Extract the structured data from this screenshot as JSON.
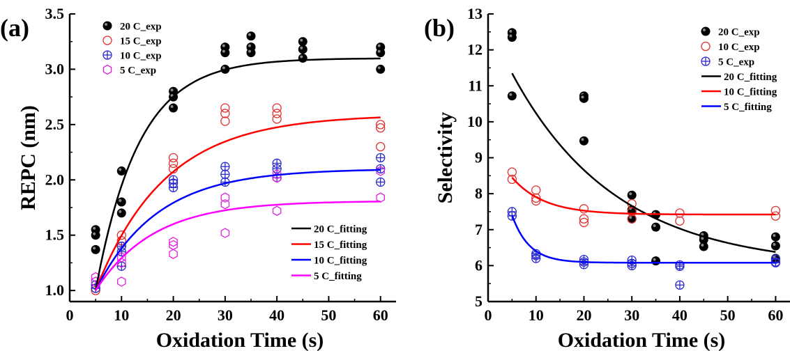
{
  "chart_data": [
    {
      "panel_label": "(a)",
      "type": "scatter",
      "xlabel": "Oxidation Time (s)",
      "ylabel": "REPC (nm)",
      "xlim": [
        0,
        63
      ],
      "ylim": [
        0.9,
        3.5
      ],
      "xticks": [
        "0",
        "10",
        "20",
        "30",
        "40",
        "50",
        "60"
      ],
      "yticks": [
        "1.0",
        "1.5",
        "2.0",
        "2.5",
        "3.0",
        "3.5"
      ],
      "grid": false,
      "series": [
        {
          "name": "20 C_exp",
          "marker": "filled-circle",
          "color": "#000000",
          "x": [
            5,
            5,
            5,
            10,
            10,
            10,
            20,
            20,
            20,
            30,
            30,
            30,
            35,
            35,
            35,
            45,
            45,
            45,
            60,
            60,
            60
          ],
          "y": [
            1.55,
            1.5,
            1.37,
            2.08,
            1.8,
            1.7,
            2.8,
            2.75,
            2.65,
            3.2,
            3.15,
            3.0,
            3.3,
            3.2,
            3.15,
            3.25,
            3.18,
            3.1,
            3.2,
            3.15,
            3.0
          ]
        },
        {
          "name": "15 C_exp",
          "marker": "open-circle",
          "color": "#e03030",
          "x": [
            5,
            5,
            10,
            10,
            10,
            20,
            20,
            20,
            30,
            30,
            30,
            40,
            40,
            40,
            60,
            60,
            60
          ],
          "y": [
            1.02,
            1.0,
            1.5,
            1.45,
            1.4,
            2.2,
            2.15,
            2.1,
            2.65,
            2.6,
            2.53,
            2.65,
            2.6,
            2.55,
            2.5,
            2.47,
            2.3
          ]
        },
        {
          "name": "10 C_exp",
          "marker": "circle-plus",
          "color": "#2a2ad0",
          "x": [
            5,
            5,
            10,
            10,
            10,
            20,
            20,
            20,
            30,
            30,
            30,
            40,
            40,
            40,
            60,
            60,
            60
          ],
          "y": [
            1.05,
            1.02,
            1.4,
            1.35,
            1.22,
            2.0,
            1.97,
            1.93,
            2.12,
            2.05,
            1.98,
            2.15,
            2.1,
            2.02,
            2.2,
            2.1,
            1.98
          ]
        },
        {
          "name": "5 C_exp",
          "marker": "open-hexagon",
          "color": "#e020e0",
          "x": [
            5,
            5,
            10,
            10,
            10,
            20,
            20,
            20,
            30,
            30,
            30,
            40,
            40,
            40,
            60,
            60
          ],
          "y": [
            1.12,
            1.08,
            1.3,
            1.25,
            1.08,
            1.44,
            1.41,
            1.33,
            1.84,
            1.78,
            1.52,
            2.05,
            2.02,
            1.72,
            2.08,
            1.84
          ]
        },
        {
          "name": "20 C_fitting",
          "kind": "line",
          "color": "#000000",
          "model": {
            "y0": 1.0,
            "yinf": 3.1,
            "k": 0.12,
            "x0": 5
          }
        },
        {
          "name": "15 C_fitting",
          "kind": "line",
          "color": "#ff0000",
          "model": {
            "y0": 1.0,
            "yinf": 2.59,
            "k": 0.075,
            "x0": 5
          }
        },
        {
          "name": "10 C_fitting",
          "kind": "line",
          "color": "#0000ff",
          "model": {
            "y0": 1.0,
            "yinf": 2.1,
            "k": 0.085,
            "x0": 5
          }
        },
        {
          "name": "5 C_fitting",
          "kind": "line",
          "color": "#ff00ff",
          "model": {
            "y0": 1.0,
            "yinf": 1.81,
            "k": 0.09,
            "x0": 5
          }
        }
      ],
      "legend": [
        {
          "label": "20 C_exp",
          "series": 0,
          "placement": "top-left"
        },
        {
          "label": "15 C_exp",
          "series": 1,
          "placement": "top-left"
        },
        {
          "label": "10 C_exp",
          "series": 2,
          "placement": "top-left"
        },
        {
          "label": "5 C_exp",
          "series": 3,
          "placement": "top-left"
        },
        {
          "label": "20 C_fitting",
          "series": 4,
          "placement": "bottom-right"
        },
        {
          "label": "15 C_fitting",
          "series": 5,
          "placement": "bottom-right"
        },
        {
          "label": "10 C_fitting",
          "series": 6,
          "placement": "bottom-right"
        },
        {
          "label": "5 C_fitting",
          "series": 7,
          "placement": "bottom-right"
        }
      ]
    },
    {
      "panel_label": "(b)",
      "type": "scatter",
      "xlabel": "Oxidation Time (s)",
      "ylabel": "Selectivity",
      "xlim": [
        0,
        63
      ],
      "ylim": [
        5,
        13
      ],
      "xticks": [
        "0",
        "10",
        "20",
        "30",
        "40",
        "50",
        "60"
      ],
      "yticks": [
        "5",
        "6",
        "7",
        "8",
        "9",
        "10",
        "11",
        "12",
        "13"
      ],
      "grid": false,
      "series": [
        {
          "name": "20 C_exp",
          "marker": "filled-circle",
          "color": "#000000",
          "x": [
            5,
            5,
            5,
            20,
            20,
            20,
            30,
            30,
            30,
            35,
            35,
            35,
            45,
            45,
            45,
            60,
            60,
            60
          ],
          "y": [
            12.48,
            12.35,
            10.72,
            10.72,
            10.65,
            9.47,
            7.96,
            7.55,
            7.3,
            7.42,
            7.07,
            6.13,
            6.83,
            6.72,
            6.53,
            6.8,
            6.55,
            6.2
          ]
        },
        {
          "name": "10 C_exp",
          "marker": "open-circle",
          "color": "#e03030",
          "x": [
            5,
            5,
            10,
            10,
            10,
            20,
            20,
            20,
            30,
            30,
            30,
            40,
            40,
            60,
            60
          ],
          "y": [
            8.6,
            8.4,
            8.1,
            7.88,
            7.8,
            7.58,
            7.3,
            7.2,
            7.72,
            7.5,
            7.3,
            7.46,
            7.24,
            7.53,
            7.38
          ]
        },
        {
          "name": "5 C_exp",
          "marker": "circle-plus",
          "color": "#2a2ad0",
          "x": [
            5,
            5,
            10,
            10,
            10,
            20,
            20,
            20,
            30,
            30,
            30,
            40,
            40,
            40,
            60,
            60,
            60
          ],
          "y": [
            7.5,
            7.38,
            6.33,
            6.28,
            6.2,
            6.17,
            6.1,
            6.03,
            6.15,
            6.06,
            6.0,
            6.02,
            5.98,
            5.46,
            6.18,
            6.1,
            6.08
          ]
        },
        {
          "name": "20 C_fitting",
          "kind": "line",
          "color": "#000000",
          "model": {
            "y0": 11.35,
            "yinf": 5.95,
            "k": 0.046,
            "x0": 5
          }
        },
        {
          "name": "10 C_fitting",
          "kind": "line",
          "color": "#ff0000",
          "model": {
            "y0": 8.45,
            "yinf": 7.42,
            "k": 0.15,
            "x0": 5
          }
        },
        {
          "name": "5 C_fitting",
          "kind": "line",
          "color": "#0000ff",
          "model": {
            "y0": 7.4,
            "yinf": 6.08,
            "k": 0.28,
            "x0": 5
          }
        }
      ],
      "legend": [
        {
          "label": "20 C_exp",
          "series": 0,
          "placement": "top-right"
        },
        {
          "label": "10 C_exp",
          "series": 1,
          "placement": "top-right"
        },
        {
          "label": "5 C_exp",
          "series": 2,
          "placement": "top-right"
        },
        {
          "label": "20 C_fitting",
          "series": 3,
          "placement": "top-right"
        },
        {
          "label": "10 C_fitting",
          "series": 4,
          "placement": "top-right"
        },
        {
          "label": "5 C_fitting",
          "series": 5,
          "placement": "top-right"
        }
      ]
    }
  ]
}
